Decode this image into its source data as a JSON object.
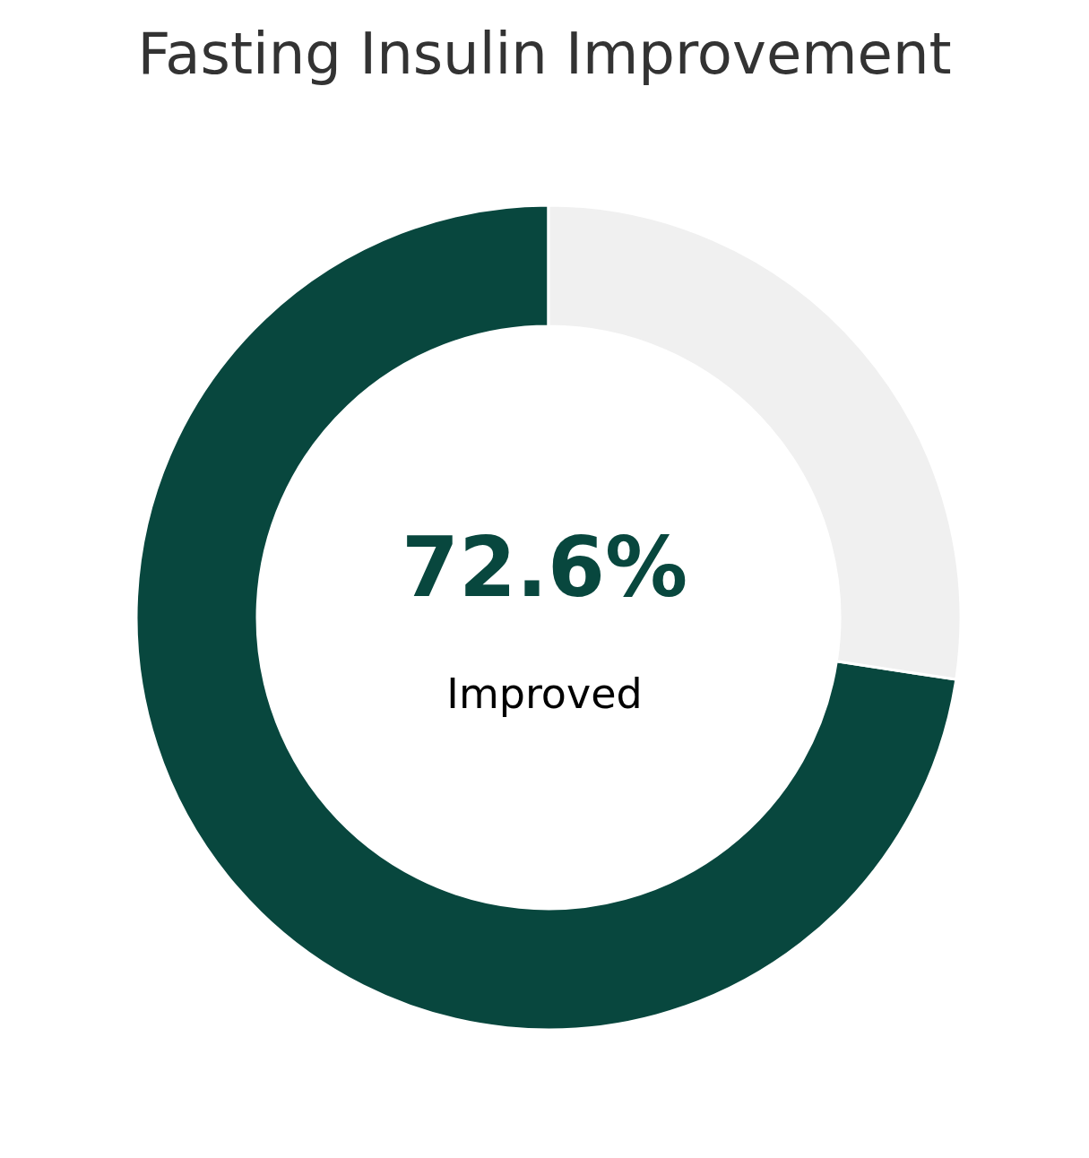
{
  "chart_data": {
    "type": "donut",
    "title": "Fasting Insulin Improvement",
    "categories": [
      "Improved",
      null
    ],
    "values": [
      72.6,
      27.4
    ],
    "colors": [
      "#08473e",
      "#f0f0f0"
    ],
    "value_labels": [
      "72.6%",
      null
    ],
    "legend": false
  }
}
